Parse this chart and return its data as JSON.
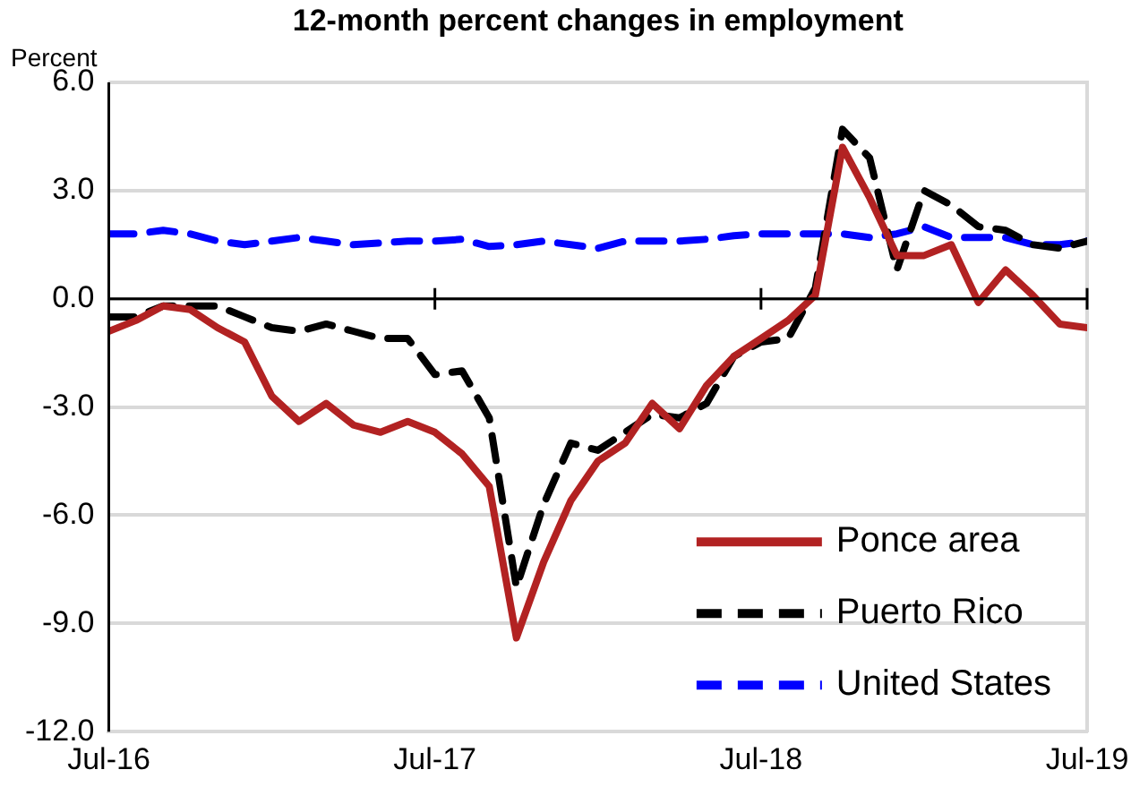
{
  "chart_data": {
    "type": "line",
    "title": "12-month percent changes in employment",
    "ylabel": "Percent",
    "x": [
      "2016-07",
      "2016-08",
      "2016-09",
      "2016-10",
      "2016-11",
      "2016-12",
      "2017-01",
      "2017-02",
      "2017-03",
      "2017-04",
      "2017-05",
      "2017-06",
      "2017-07",
      "2017-08",
      "2017-09",
      "2017-10",
      "2017-11",
      "2017-12",
      "2018-01",
      "2018-02",
      "2018-03",
      "2018-04",
      "2018-05",
      "2018-06",
      "2018-07",
      "2018-08",
      "2018-09",
      "2018-10",
      "2018-11",
      "2018-12",
      "2019-01",
      "2019-02",
      "2019-03",
      "2019-04",
      "2019-05",
      "2019-06",
      "2019-07"
    ],
    "series": [
      {
        "name": "Ponce area",
        "color": "#b22222",
        "line_style": "solid",
        "values": [
          -0.9,
          -0.6,
          -0.2,
          -0.3,
          -0.8,
          -1.2,
          -2.7,
          -3.4,
          -2.9,
          -3.5,
          -3.7,
          -3.4,
          -3.7,
          -4.3,
          -5.2,
          -9.4,
          -7.3,
          -5.6,
          -4.5,
          -4.0,
          -2.9,
          -3.6,
          -2.4,
          -1.6,
          -1.1,
          -0.6,
          0.1,
          4.2,
          2.8,
          1.2,
          1.2,
          1.5,
          -0.1,
          0.8,
          0.1,
          -0.7,
          -0.8
        ]
      },
      {
        "name": "Puerto Rico",
        "color": "#000000",
        "line_style": "dashed",
        "values": [
          -0.5,
          -0.5,
          -0.2,
          -0.2,
          -0.2,
          -0.5,
          -0.8,
          -0.9,
          -0.7,
          -0.9,
          -1.1,
          -1.1,
          -2.1,
          -2.0,
          -3.3,
          -8.0,
          -5.7,
          -4.0,
          -4.2,
          -3.7,
          -3.2,
          -3.3,
          -2.9,
          -1.6,
          -1.2,
          -1.1,
          0.3,
          4.7,
          3.9,
          0.8,
          3.0,
          2.6,
          2.0,
          1.9,
          1.5,
          1.4,
          1.6
        ]
      },
      {
        "name": "United States",
        "color": "#0000ff",
        "line_style": "dashed",
        "values": [
          1.8,
          1.8,
          1.9,
          1.8,
          1.6,
          1.5,
          1.6,
          1.7,
          1.6,
          1.5,
          1.55,
          1.6,
          1.6,
          1.65,
          1.45,
          1.5,
          1.6,
          1.5,
          1.4,
          1.6,
          1.6,
          1.6,
          1.65,
          1.75,
          1.8,
          1.8,
          1.8,
          1.8,
          1.7,
          1.8,
          2.0,
          1.7,
          1.7,
          1.7,
          1.5,
          1.5,
          1.6
        ]
      }
    ],
    "xlim": [
      "2016-07",
      "2019-07"
    ],
    "xticks": [
      {
        "value": "2016-07",
        "label": "Jul-16"
      },
      {
        "value": "2017-07",
        "label": "Jul-17"
      },
      {
        "value": "2018-07",
        "label": "Jul-18"
      },
      {
        "value": "2019-07",
        "label": "Jul-19"
      }
    ],
    "ylim": [
      -12,
      6
    ],
    "yticks": [
      {
        "value": -12,
        "label": "-12.0"
      },
      {
        "value": -9,
        "label": "-9.0"
      },
      {
        "value": -6,
        "label": "-6.0"
      },
      {
        "value": -3,
        "label": "-3.0"
      },
      {
        "value": 0,
        "label": "0.0"
      },
      {
        "value": 3,
        "label": "3.0"
      },
      {
        "value": 6,
        "label": "6.0"
      }
    ],
    "grid": "y",
    "legend": "bottom right",
    "marker": "none"
  }
}
